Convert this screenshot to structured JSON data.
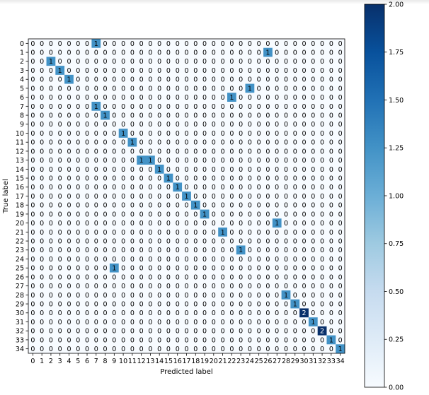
{
  "chart_data": {
    "type": "heatmap",
    "title": "",
    "xlabel": "Predicted label",
    "ylabel": "True label",
    "x_categories": [
      "0",
      "1",
      "2",
      "3",
      "4",
      "5",
      "6",
      "7",
      "8",
      "9",
      "10",
      "11",
      "12",
      "13",
      "14",
      "15",
      "16",
      "17",
      "18",
      "19",
      "20",
      "21",
      "22",
      "23",
      "24",
      "25",
      "26",
      "27",
      "28",
      "29",
      "30",
      "31",
      "32",
      "33",
      "34"
    ],
    "y_categories": [
      "0",
      "1",
      "2",
      "3",
      "4",
      "5",
      "6",
      "7",
      "8",
      "9",
      "10",
      "11",
      "12",
      "13",
      "14",
      "15",
      "16",
      "17",
      "18",
      "19",
      "20",
      "21",
      "22",
      "23",
      "24",
      "25",
      "26",
      "27",
      "28",
      "29",
      "30",
      "31",
      "32",
      "33",
      "34"
    ],
    "default_value": 0,
    "nonzero_cells": [
      {
        "row": 0,
        "col": 7,
        "value": 1
      },
      {
        "row": 1,
        "col": 26,
        "value": 1
      },
      {
        "row": 2,
        "col": 2,
        "value": 1
      },
      {
        "row": 3,
        "col": 3,
        "value": 1
      },
      {
        "row": 4,
        "col": 4,
        "value": 1
      },
      {
        "row": 5,
        "col": 24,
        "value": 1
      },
      {
        "row": 6,
        "col": 22,
        "value": 1
      },
      {
        "row": 7,
        "col": 7,
        "value": 1
      },
      {
        "row": 8,
        "col": 8,
        "value": 1
      },
      {
        "row": 10,
        "col": 10,
        "value": 1
      },
      {
        "row": 11,
        "col": 11,
        "value": 1
      },
      {
        "row": 13,
        "col": 12,
        "value": 1
      },
      {
        "row": 13,
        "col": 13,
        "value": 1
      },
      {
        "row": 14,
        "col": 14,
        "value": 1
      },
      {
        "row": 15,
        "col": 15,
        "value": 1
      },
      {
        "row": 16,
        "col": 16,
        "value": 1
      },
      {
        "row": 17,
        "col": 17,
        "value": 1
      },
      {
        "row": 18,
        "col": 18,
        "value": 1
      },
      {
        "row": 19,
        "col": 19,
        "value": 1
      },
      {
        "row": 20,
        "col": 27,
        "value": 1
      },
      {
        "row": 21,
        "col": 21,
        "value": 1
      },
      {
        "row": 23,
        "col": 23,
        "value": 1
      },
      {
        "row": 25,
        "col": 9,
        "value": 1
      },
      {
        "row": 28,
        "col": 28,
        "value": 1
      },
      {
        "row": 29,
        "col": 29,
        "value": 1
      },
      {
        "row": 30,
        "col": 30,
        "value": 2
      },
      {
        "row": 31,
        "col": 31,
        "value": 1
      },
      {
        "row": 32,
        "col": 32,
        "value": 2
      },
      {
        "row": 33,
        "col": 33,
        "value": 1
      },
      {
        "row": 34,
        "col": 34,
        "value": 1
      }
    ],
    "colormap": "Blues",
    "colorbar": {
      "range": [
        0,
        2
      ],
      "ticks": [
        "0.00",
        "0.25",
        "0.50",
        "0.75",
        "1.00",
        "1.25",
        "1.50",
        "1.75",
        "2.00"
      ]
    },
    "colors": {
      "zero": "#f7fbff",
      "one": "#4292c6",
      "two": "#08306b",
      "dark_text": "#000000",
      "light_text": "#ffffff"
    }
  }
}
